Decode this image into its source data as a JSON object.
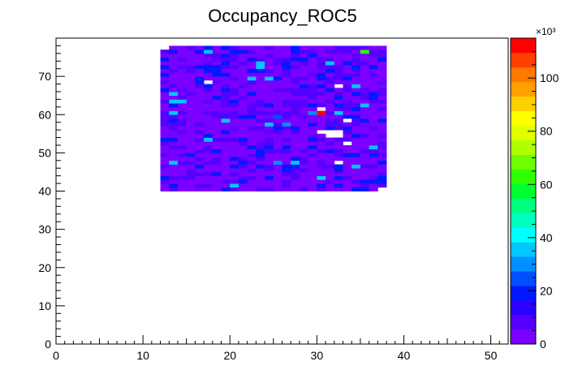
{
  "chart_data": {
    "type": "heatmap",
    "title": "Occupancy_ROC5",
    "xlabel": "",
    "ylabel": "",
    "xlim": [
      0,
      52
    ],
    "ylim": [
      0,
      80
    ],
    "x_ticks": [
      0,
      10,
      20,
      30,
      40,
      50
    ],
    "y_ticks": [
      0,
      10,
      20,
      30,
      40,
      50,
      60,
      70
    ],
    "colorbar": {
      "range": [
        0,
        115
      ],
      "exponent_label": "×10³",
      "ticks": [
        0,
        20,
        40,
        60,
        80,
        100
      ],
      "colors": [
        "#7a00ff",
        "#5500ff",
        "#2a00ff",
        "#0018ff",
        "#0050ff",
        "#0090ff",
        "#00c8ff",
        "#00ffff",
        "#00ffbf",
        "#00ff80",
        "#00ff30",
        "#30ff00",
        "#70ff00",
        "#b0ff00",
        "#e0ff00",
        "#ffff00",
        "#ffd000",
        "#ffa000",
        "#ff7800",
        "#ff4000",
        "#ff0000"
      ]
    },
    "cells": {
      "x_range": [
        13,
        38
      ],
      "y_range": [
        41,
        78
      ],
      "background_value": 8,
      "hot_cells": [
        {
          "x": 36,
          "y": 77,
          "value": 62
        },
        {
          "x": 31,
          "y": 61,
          "value": 110
        },
        {
          "x": 30,
          "y": 61,
          "value": 30
        },
        {
          "x": 27,
          "y": 58,
          "value": 30
        },
        {
          "x": 26,
          "y": 60,
          "value": 25
        },
        {
          "x": 26,
          "y": 48,
          "value": 32
        }
      ],
      "dead_cells": [
        {
          "x": 18,
          "y": 69
        },
        {
          "x": 33,
          "y": 68
        },
        {
          "x": 31,
          "y": 62
        },
        {
          "x": 34,
          "y": 59
        },
        {
          "x": 31,
          "y": 56
        },
        {
          "x": 32,
          "y": 56
        },
        {
          "x": 33,
          "y": 56
        },
        {
          "x": 32,
          "y": 55
        },
        {
          "x": 33,
          "y": 55
        },
        {
          "x": 34,
          "y": 53
        },
        {
          "x": 33,
          "y": 48
        }
      ]
    }
  }
}
